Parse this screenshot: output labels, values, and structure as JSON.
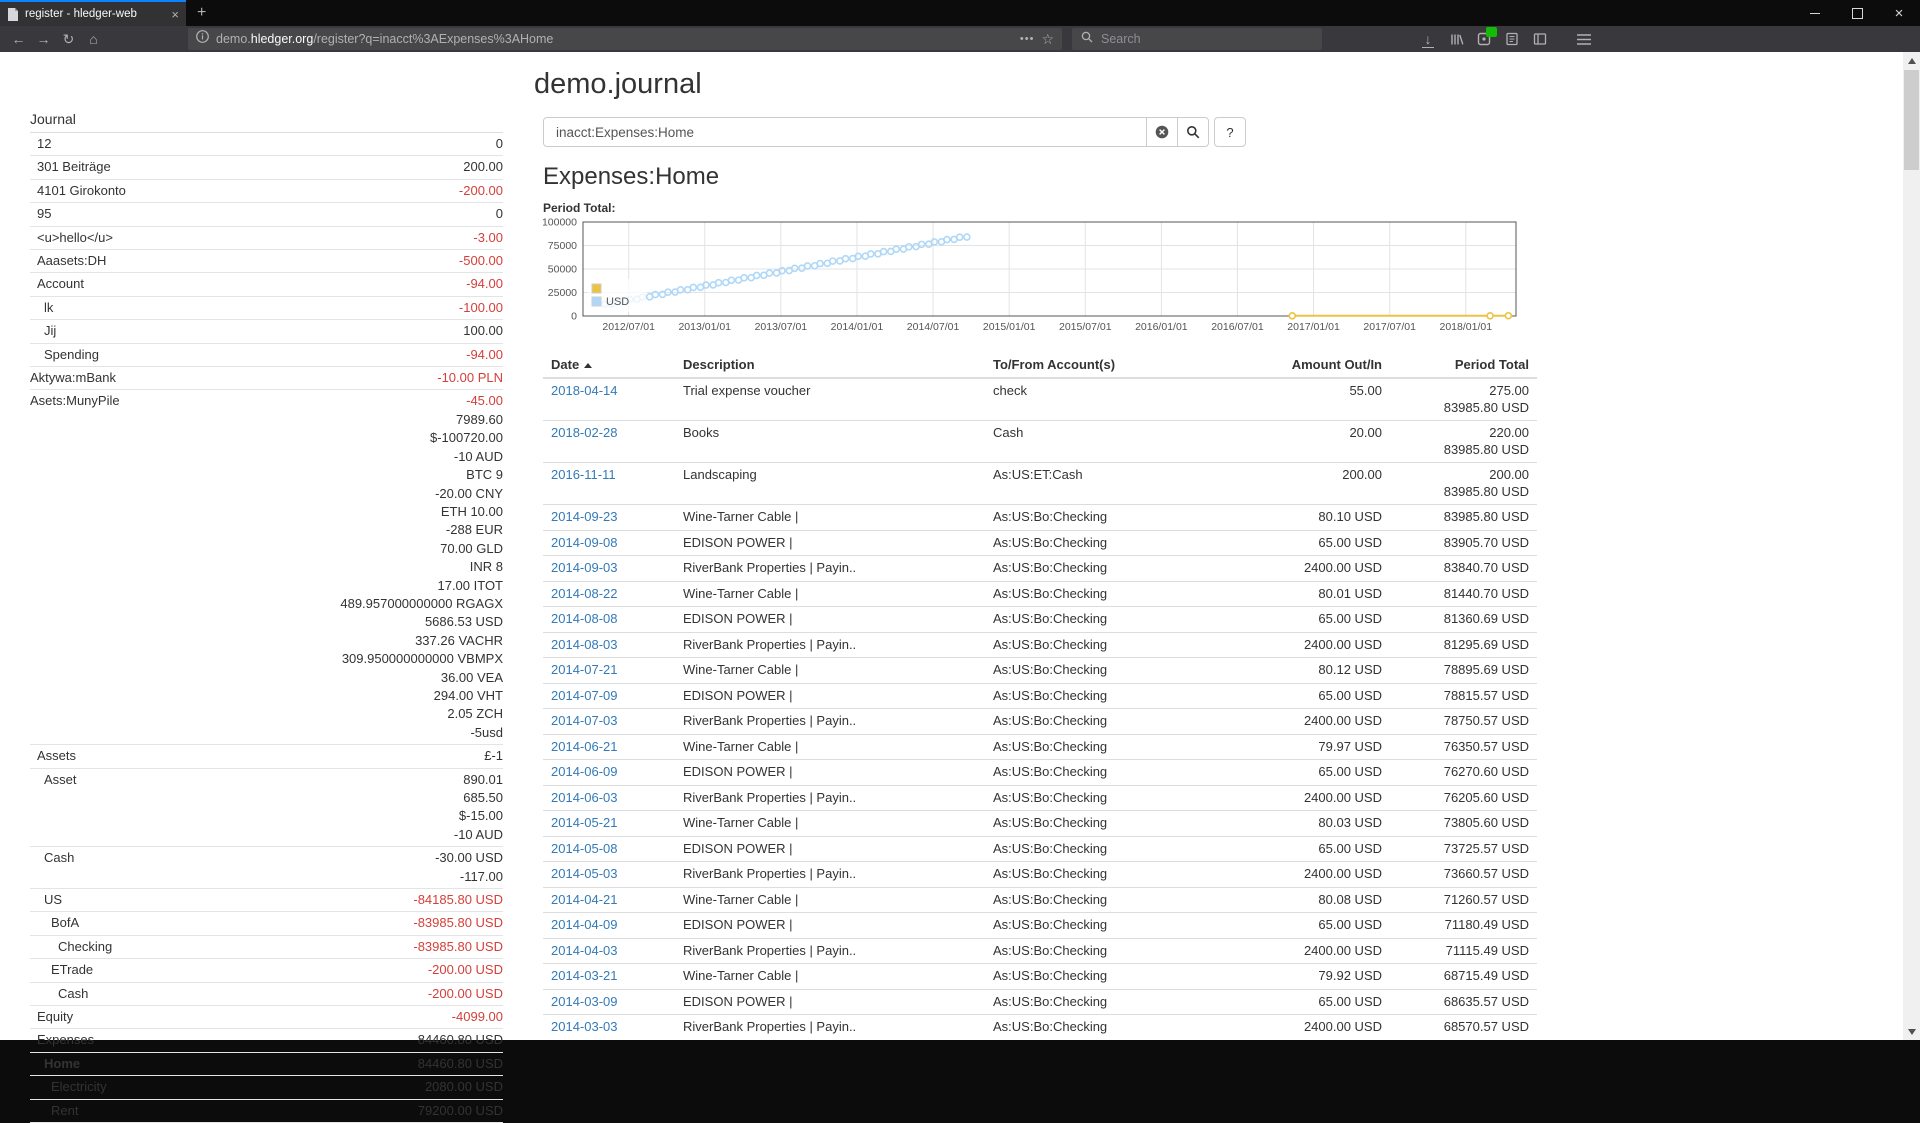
{
  "colors": {
    "accent": "#0a84ff",
    "link": "#337ab7",
    "negative": "#d43f3a",
    "chart_yellow": "#edc240",
    "chart_blue": "#afd8f8"
  },
  "browser": {
    "tab": {
      "title": "register - hledger-web",
      "close_glyph": "×"
    },
    "new_tab_glyph": "+",
    "window_close_glyph": "×",
    "nav": {
      "back": "←",
      "forward": "→",
      "reload": "↻",
      "home": "⌂"
    },
    "url": {
      "subdomain": "demo.",
      "domain": "hledger.org",
      "path": "/register?q=inacct%3AExpenses%3AHome"
    },
    "page_actions_glyph": "•••",
    "bookmark_glyph": "☆",
    "search_placeholder": "Search",
    "download_glyph": "↓"
  },
  "page": {
    "title": "demo.journal",
    "query": "inacct:Expenses:Home",
    "heading": "Expenses:Home",
    "period_total_label": "Period Total:",
    "help_label": "?"
  },
  "sidebar": {
    "title": "Journal",
    "items": [
      {
        "name": "12",
        "indent": 1,
        "amounts": [
          {
            "t": "0"
          }
        ]
      },
      {
        "name": "301 Beiträge",
        "indent": 1,
        "amounts": [
          {
            "t": "200.00"
          }
        ]
      },
      {
        "name": "4101 Girokonto",
        "indent": 1,
        "amounts": [
          {
            "t": "-200.00",
            "neg": true
          }
        ]
      },
      {
        "name": "95",
        "indent": 1,
        "amounts": [
          {
            "t": "0"
          }
        ]
      },
      {
        "name": "<u>hello</u>",
        "indent": 1,
        "amounts": [
          {
            "t": "-3.00",
            "neg": true
          }
        ]
      },
      {
        "name": "Aaasets:DH",
        "indent": 1,
        "amounts": [
          {
            "t": "-500.00",
            "neg": true
          }
        ]
      },
      {
        "name": "Account",
        "indent": 1,
        "amounts": [
          {
            "t": "-94.00",
            "neg": true
          }
        ]
      },
      {
        "name": "lk",
        "indent": 2,
        "amounts": [
          {
            "t": "-100.00",
            "neg": true
          }
        ]
      },
      {
        "name": "Jij",
        "indent": 2,
        "amounts": [
          {
            "t": "100.00"
          }
        ]
      },
      {
        "name": "Spending",
        "indent": 2,
        "amounts": [
          {
            "t": "-94.00",
            "neg": true
          }
        ]
      },
      {
        "name": "Aktywa:mBank",
        "indent": 0,
        "amounts": [
          {
            "t": "-10.00 PLN",
            "neg": true
          }
        ]
      },
      {
        "name": "Asets:MunyPile",
        "indent": 0,
        "amounts": [
          {
            "t": "-45.00",
            "neg": true
          },
          {
            "t": "7989.60"
          },
          {
            "t": "$-100720.00"
          },
          {
            "t": "-10 AUD"
          },
          {
            "t": "BTC 9"
          },
          {
            "t": "-20.00 CNY"
          },
          {
            "t": "ETH 10.00"
          },
          {
            "t": "-288 EUR"
          },
          {
            "t": "70.00 GLD"
          },
          {
            "t": "INR 8"
          },
          {
            "t": "17.00 ITOT"
          },
          {
            "t": "489.957000000000 RGAGX"
          },
          {
            "t": "5686.53 USD"
          },
          {
            "t": "337.26 VACHR"
          },
          {
            "t": "309.950000000000 VBMPX"
          },
          {
            "t": "36.00 VEA"
          },
          {
            "t": "294.00 VHT"
          },
          {
            "t": "2.05 ZCH"
          },
          {
            "t": "-5usd"
          }
        ]
      },
      {
        "name": "Assets",
        "indent": 1,
        "amounts": [
          {
            "t": "£-1"
          }
        ]
      },
      {
        "name": "Asset",
        "indent": 2,
        "amounts": [
          {
            "t": "890.01"
          },
          {
            "t": "685.50"
          },
          {
            "t": "$-15.00"
          },
          {
            "t": "-10 AUD"
          }
        ]
      },
      {
        "name": "Cash",
        "indent": 2,
        "amounts": [
          {
            "t": "-30.00 USD"
          },
          {
            "t": "-117.00"
          }
        ]
      },
      {
        "name": "US",
        "indent": 2,
        "amounts": [
          {
            "t": "-84185.80 USD",
            "neg": true
          }
        ]
      },
      {
        "name": "BofA",
        "indent": 3,
        "amounts": [
          {
            "t": "-83985.80 USD",
            "neg": true
          }
        ]
      },
      {
        "name": "Checking",
        "indent": 4,
        "amounts": [
          {
            "t": "-83985.80 USD",
            "neg": true
          }
        ]
      },
      {
        "name": "ETrade",
        "indent": 3,
        "amounts": [
          {
            "t": "-200.00 USD",
            "neg": true
          }
        ]
      },
      {
        "name": "Cash",
        "indent": 4,
        "amounts": [
          {
            "t": "-200.00 USD",
            "neg": true
          }
        ]
      },
      {
        "name": "Equity",
        "indent": 1,
        "amounts": [
          {
            "t": "-4099.00",
            "neg": true
          }
        ]
      },
      {
        "name": "Expenses",
        "indent": 1,
        "amounts": [
          {
            "t": "84460.80 USD"
          }
        ]
      },
      {
        "name": "Home",
        "indent": 2,
        "bold": true,
        "amounts": [
          {
            "t": "84460.80 USD"
          }
        ]
      },
      {
        "name": "Electricity",
        "indent": 3,
        "amounts": [
          {
            "t": "2080.00 USD"
          }
        ]
      },
      {
        "name": "Rent",
        "indent": 3,
        "amounts": [
          {
            "t": "79200.00 USD"
          }
        ]
      }
    ]
  },
  "chart_data": {
    "type": "scatter",
    "title": "Period Total:",
    "x_range": [
      2012.2,
      2018.33
    ],
    "y_range": [
      0,
      100000
    ],
    "y_ticks": [
      0,
      25000,
      50000,
      75000,
      100000
    ],
    "x_ticks": [
      {
        "v": 2012.5,
        "label": "2012/07/01"
      },
      {
        "v": 2013.0,
        "label": "2013/01/01"
      },
      {
        "v": 2013.5,
        "label": "2013/07/01"
      },
      {
        "v": 2014.0,
        "label": "2014/01/01"
      },
      {
        "v": 2014.5,
        "label": "2014/07/01"
      },
      {
        "v": 2015.0,
        "label": "2015/01/01"
      },
      {
        "v": 2015.5,
        "label": "2015/07/01"
      },
      {
        "v": 2016.0,
        "label": "2016/01/01"
      },
      {
        "v": 2016.5,
        "label": "2016/07/01"
      },
      {
        "v": 2017.0,
        "label": "2017/01/01"
      },
      {
        "v": 2017.5,
        "label": "2017/07/01"
      },
      {
        "v": 2018.0,
        "label": "2018/01/01"
      }
    ],
    "series": [
      {
        "name": "",
        "color": "#edc240",
        "type": "line",
        "points": [
          [
            2016.86,
            200
          ],
          [
            2018.16,
            220
          ],
          [
            2018.28,
            275
          ]
        ]
      },
      {
        "name": "USD",
        "color": "#afd8f8",
        "type": "points",
        "points": [
          [
            2012.341,
            12580
          ],
          [
            2012.388,
            12725
          ],
          [
            2012.425,
            15125
          ],
          [
            2012.472,
            15270
          ],
          [
            2012.508,
            17670
          ],
          [
            2012.555,
            17815
          ],
          [
            2012.591,
            20215
          ],
          [
            2012.638,
            20360
          ],
          [
            2012.675,
            22760
          ],
          [
            2012.722,
            22905
          ],
          [
            2012.758,
            25305
          ],
          [
            2012.805,
            25450
          ],
          [
            2012.841,
            27850
          ],
          [
            2012.888,
            27995
          ],
          [
            2012.925,
            30395
          ],
          [
            2012.972,
            30540
          ],
          [
            2013.008,
            32940
          ],
          [
            2013.055,
            33085
          ],
          [
            2013.091,
            35485
          ],
          [
            2013.138,
            35630
          ],
          [
            2013.175,
            38030
          ],
          [
            2013.222,
            38175
          ],
          [
            2013.258,
            40575
          ],
          [
            2013.305,
            40720
          ],
          [
            2013.341,
            43120
          ],
          [
            2013.388,
            43265
          ],
          [
            2013.425,
            45665
          ],
          [
            2013.472,
            45810
          ],
          [
            2013.508,
            48210
          ],
          [
            2013.555,
            48355
          ],
          [
            2013.591,
            50755
          ],
          [
            2013.638,
            50900
          ],
          [
            2013.675,
            53300
          ],
          [
            2013.722,
            53445
          ],
          [
            2013.758,
            55845
          ],
          [
            2013.805,
            55990
          ],
          [
            2013.841,
            58390
          ],
          [
            2013.888,
            58535
          ],
          [
            2013.925,
            60935
          ],
          [
            2013.972,
            61080
          ],
          [
            2014.008,
            63480
          ],
          [
            2014.055,
            63625
          ],
          [
            2014.091,
            66025
          ],
          [
            2014.138,
            66170
          ],
          [
            2014.175,
            68570
          ],
          [
            2014.222,
            68715
          ],
          [
            2014.258,
            71115
          ],
          [
            2014.305,
            71260
          ],
          [
            2014.341,
            73660
          ],
          [
            2014.388,
            73805
          ],
          [
            2014.425,
            76205
          ],
          [
            2014.472,
            76350
          ],
          [
            2014.508,
            78750
          ],
          [
            2014.555,
            78895
          ],
          [
            2014.591,
            81295
          ],
          [
            2014.638,
            81440
          ],
          [
            2014.675,
            83840
          ],
          [
            2014.722,
            83985
          ]
        ]
      }
    ],
    "legend_position": "bottom-left"
  },
  "register": {
    "columns": [
      "Date",
      "Description",
      "To/From Account(s)",
      "Amount Out/In",
      "Period Total"
    ],
    "rows": [
      {
        "date": "2018-04-14",
        "desc": "Trial expense voucher",
        "acct": "check",
        "amt": "55.00",
        "totals": [
          "275.00",
          "83985.80 USD"
        ]
      },
      {
        "date": "2018-02-28",
        "desc": "Books",
        "acct": "Cash",
        "amt": "20.00",
        "totals": [
          "220.00",
          "83985.80 USD"
        ]
      },
      {
        "date": "2016-11-11",
        "desc": "Landscaping",
        "acct": "As:US:ET:Cash",
        "amt": "200.00",
        "totals": [
          "200.00",
          "83985.80 USD"
        ]
      },
      {
        "date": "2014-09-23",
        "desc": "Wine-Tarner Cable |",
        "acct": "As:US:Bo:Checking",
        "amt": "80.10 USD",
        "totals": [
          "83985.80 USD"
        ]
      },
      {
        "date": "2014-09-08",
        "desc": "EDISON POWER |",
        "acct": "As:US:Bo:Checking",
        "amt": "65.00 USD",
        "totals": [
          "83905.70 USD"
        ]
      },
      {
        "date": "2014-09-03",
        "desc": "RiverBank Properties | Payin..",
        "acct": "As:US:Bo:Checking",
        "amt": "2400.00 USD",
        "totals": [
          "83840.70 USD"
        ]
      },
      {
        "date": "2014-08-22",
        "desc": "Wine-Tarner Cable |",
        "acct": "As:US:Bo:Checking",
        "amt": "80.01 USD",
        "totals": [
          "81440.70 USD"
        ]
      },
      {
        "date": "2014-08-08",
        "desc": "EDISON POWER |",
        "acct": "As:US:Bo:Checking",
        "amt": "65.00 USD",
        "totals": [
          "81360.69 USD"
        ]
      },
      {
        "date": "2014-08-03",
        "desc": "RiverBank Properties | Payin..",
        "acct": "As:US:Bo:Checking",
        "amt": "2400.00 USD",
        "totals": [
          "81295.69 USD"
        ]
      },
      {
        "date": "2014-07-21",
        "desc": "Wine-Tarner Cable |",
        "acct": "As:US:Bo:Checking",
        "amt": "80.12 USD",
        "totals": [
          "78895.69 USD"
        ]
      },
      {
        "date": "2014-07-09",
        "desc": "EDISON POWER |",
        "acct": "As:US:Bo:Checking",
        "amt": "65.00 USD",
        "totals": [
          "78815.57 USD"
        ]
      },
      {
        "date": "2014-07-03",
        "desc": "RiverBank Properties | Payin..",
        "acct": "As:US:Bo:Checking",
        "amt": "2400.00 USD",
        "totals": [
          "78750.57 USD"
        ]
      },
      {
        "date": "2014-06-21",
        "desc": "Wine-Tarner Cable |",
        "acct": "As:US:Bo:Checking",
        "amt": "79.97 USD",
        "totals": [
          "76350.57 USD"
        ]
      },
      {
        "date": "2014-06-09",
        "desc": "EDISON POWER |",
        "acct": "As:US:Bo:Checking",
        "amt": "65.00 USD",
        "totals": [
          "76270.60 USD"
        ]
      },
      {
        "date": "2014-06-03",
        "desc": "RiverBank Properties | Payin..",
        "acct": "As:US:Bo:Checking",
        "amt": "2400.00 USD",
        "totals": [
          "76205.60 USD"
        ]
      },
      {
        "date": "2014-05-21",
        "desc": "Wine-Tarner Cable |",
        "acct": "As:US:Bo:Checking",
        "amt": "80.03 USD",
        "totals": [
          "73805.60 USD"
        ]
      },
      {
        "date": "2014-05-08",
        "desc": "EDISON POWER |",
        "acct": "As:US:Bo:Checking",
        "amt": "65.00 USD",
        "totals": [
          "73725.57 USD"
        ]
      },
      {
        "date": "2014-05-03",
        "desc": "RiverBank Properties | Payin..",
        "acct": "As:US:Bo:Checking",
        "amt": "2400.00 USD",
        "totals": [
          "73660.57 USD"
        ]
      },
      {
        "date": "2014-04-21",
        "desc": "Wine-Tarner Cable |",
        "acct": "As:US:Bo:Checking",
        "amt": "80.08 USD",
        "totals": [
          "71260.57 USD"
        ]
      },
      {
        "date": "2014-04-09",
        "desc": "EDISON POWER |",
        "acct": "As:US:Bo:Checking",
        "amt": "65.00 USD",
        "totals": [
          "71180.49 USD"
        ]
      },
      {
        "date": "2014-04-03",
        "desc": "RiverBank Properties | Payin..",
        "acct": "As:US:Bo:Checking",
        "amt": "2400.00 USD",
        "totals": [
          "71115.49 USD"
        ]
      },
      {
        "date": "2014-03-21",
        "desc": "Wine-Tarner Cable |",
        "acct": "As:US:Bo:Checking",
        "amt": "79.92 USD",
        "totals": [
          "68715.49 USD"
        ]
      },
      {
        "date": "2014-03-09",
        "desc": "EDISON POWER |",
        "acct": "As:US:Bo:Checking",
        "amt": "65.00 USD",
        "totals": [
          "68635.57 USD"
        ]
      },
      {
        "date": "2014-03-03",
        "desc": "RiverBank Properties | Payin..",
        "acct": "As:US:Bo:Checking",
        "amt": "2400.00 USD",
        "totals": [
          "68570.57 USD"
        ]
      }
    ]
  }
}
